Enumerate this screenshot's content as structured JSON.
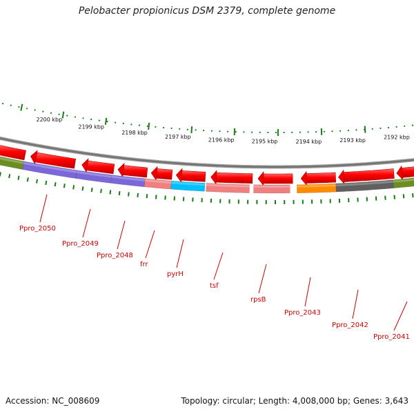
{
  "title": "Pelobacter propionicus DSM 2379, complete genome",
  "footer": {
    "accession": "Accession: NC_008609",
    "summary": "Topology: circular; Length: 4,008,000 bp; Genes: 3,643"
  },
  "kbp_ticks": [
    "2200 kbp",
    "2199 kbp",
    "2198 kbp",
    "2197 kbp",
    "2196 kbp",
    "2195 kbp",
    "2194 kbp",
    "2193 kbp",
    "2192 kbp"
  ],
  "genes": [
    {
      "label": "Ppro_2050",
      "color": "#7b68d8"
    },
    {
      "label": "Ppro_2049",
      "color": "#7b68d8"
    },
    {
      "label": "Ppro_2048",
      "color": "#7b68d8"
    },
    {
      "label": "frr",
      "color": "#f08080"
    },
    {
      "label": "pyrH",
      "color": "#00bfff"
    },
    {
      "label": "tsf",
      "color": "#f08080"
    },
    {
      "label": "rpsB",
      "color": "#f08080"
    },
    {
      "label": "Ppro_2043",
      "color": "#ff8c00"
    },
    {
      "label": "Ppro_2042",
      "color": "#606060"
    },
    {
      "label": "Ppro_2041",
      "color": "#6b8e23"
    }
  ],
  "legend_colors": {
    "cds_arrow": "#ff0000",
    "backbone": "#888888",
    "tick": "#1a7a1a",
    "label": "#cc0000"
  }
}
